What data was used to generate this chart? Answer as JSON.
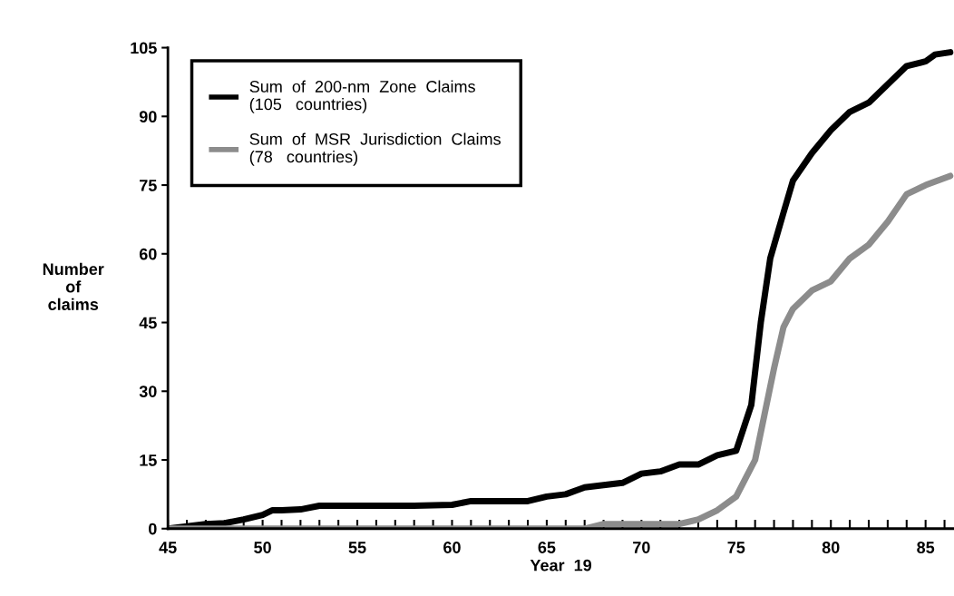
{
  "chart_data": {
    "type": "line",
    "xlabel": "Year  19",
    "ylabel": "Number\nof\nclaims",
    "xlim": [
      45,
      86.5
    ],
    "xticks": [
      45,
      50,
      55,
      60,
      65,
      70,
      75,
      80,
      85
    ],
    "ylim": [
      0,
      105
    ],
    "yticks": [
      0,
      15,
      30,
      45,
      60,
      75,
      90,
      105
    ],
    "grid": false,
    "legend": "top left",
    "marker": "none",
    "line_style": "solid",
    "series": [
      {
        "name": "Sum  of  200-nm  Zone  Claims\n(105   countries)",
        "color": "#000000",
        "x": [
          45,
          47,
          48,
          49,
          50,
          50.5,
          51,
          52,
          53,
          54,
          56,
          58,
          60,
          61,
          64,
          65,
          66,
          67,
          68,
          69,
          70,
          71,
          72,
          73,
          74,
          75,
          75.8,
          76.3,
          76.8,
          77.5,
          78,
          79,
          80,
          81,
          82,
          83,
          84,
          85,
          85.5,
          86.3
        ],
        "values": [
          0,
          1,
          1.2,
          2,
          3,
          4,
          4,
          4.2,
          5,
          5,
          5,
          5,
          5.2,
          6,
          6,
          7,
          7.5,
          9,
          9.5,
          10,
          12,
          12.5,
          14,
          14,
          16,
          17,
          27,
          45,
          59,
          69,
          76,
          82,
          87,
          91,
          93,
          97,
          101,
          102,
          103.5,
          104
        ]
      },
      {
        "name": "Sum  of  MSR  Jurisdiction  Claims\n(78   countries)",
        "color": "#8c8c8c",
        "x": [
          45,
          67,
          68,
          72,
          73,
          74,
          75,
          75.5,
          76,
          76.5,
          77,
          77.5,
          78,
          79,
          80,
          81,
          82,
          83,
          84,
          85,
          86.3
        ],
        "values": [
          0,
          0,
          1,
          1,
          2,
          4,
          7,
          11,
          15,
          25,
          35,
          44,
          48,
          52,
          54,
          59,
          62,
          67,
          73,
          75,
          77
        ]
      }
    ]
  }
}
